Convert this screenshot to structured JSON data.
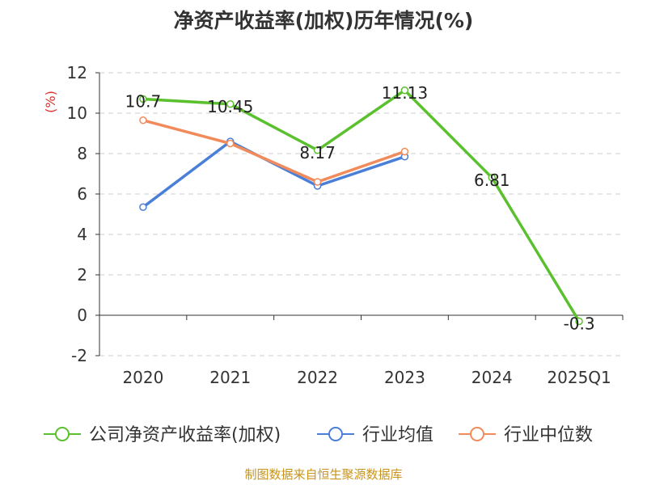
{
  "source": "制图数据来自恒生聚源数据库",
  "chart_data": {
    "type": "line",
    "title": "净资产收益率(加权)历年情况(%)",
    "ylabel": "(%)",
    "xlabel": "",
    "categories": [
      "2020",
      "2021",
      "2022",
      "2023",
      "2024",
      "2025Q1"
    ],
    "ylim": [
      -2,
      12
    ],
    "yticks": [
      -2,
      0,
      2,
      4,
      6,
      8,
      10,
      12
    ],
    "grid": true,
    "legend_position": "bottom",
    "series": [
      {
        "name": "公司净资产收益率(加权)",
        "color": "#5bc02e",
        "values": [
          10.7,
          10.45,
          8.17,
          11.13,
          6.81,
          -0.3
        ],
        "labels": [
          "10.7",
          "10.45",
          "8.17",
          "11.13",
          "6.81",
          "-0.3"
        ]
      },
      {
        "name": "行业均值",
        "color": "#4a7fd9",
        "values": [
          5.35,
          8.6,
          6.4,
          7.85,
          null,
          null
        ]
      },
      {
        "name": "行业中位数",
        "color": "#f28b5b",
        "values": [
          9.65,
          8.5,
          6.6,
          8.1,
          null,
          null
        ]
      }
    ]
  }
}
